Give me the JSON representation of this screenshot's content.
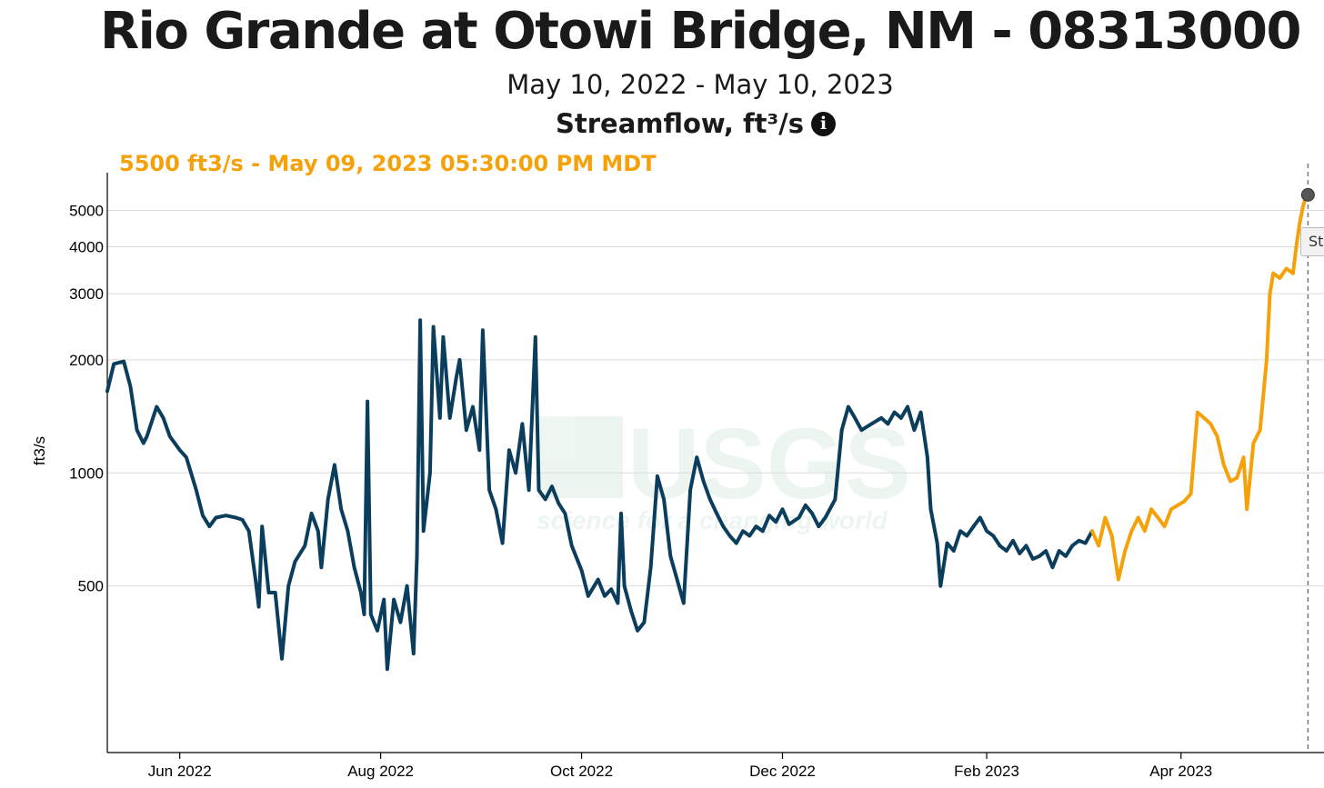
{
  "header": {
    "title": "Rio Grande at Otowi Bridge, NM - 08313000",
    "date_range": "May 10, 2022 - May 10, 2023",
    "parameter": "Streamflow, ft³/s",
    "info_icon": "info-circle-icon"
  },
  "hover": {
    "readout": "5500 ft3/s - May 09, 2023 05:30:00 PM MDT",
    "tooltip_text": "St"
  },
  "watermark": {
    "logo": "USGS",
    "tagline": "science for a changing world"
  },
  "colors": {
    "approved": "#0b3d5c",
    "provisional": "#f5a10a",
    "grid": "#dcdcdc",
    "hover_dot": "#555555"
  },
  "chart_data": {
    "type": "line",
    "title": "Rio Grande at Otowi Bridge, NM - 08313000",
    "subtitle": "May 10, 2022 - May 10, 2023",
    "xlabel": "",
    "ylabel": "ft3/s",
    "y_scale": "log",
    "x_range": [
      "2022-05-10",
      "2023-05-10"
    ],
    "ylim": [
      180,
      6300
    ],
    "y_ticks": [
      500,
      1000,
      2000,
      3000,
      4000,
      5000
    ],
    "x_ticks": [
      {
        "date": "2022-06-01",
        "label": "Jun 2022"
      },
      {
        "date": "2022-08-01",
        "label": "Aug 2022"
      },
      {
        "date": "2022-10-01",
        "label": "Oct 2022"
      },
      {
        "date": "2022-12-01",
        "label": "Dec 2022"
      },
      {
        "date": "2023-02-01",
        "label": "Feb 2023"
      },
      {
        "date": "2023-04-01",
        "label": "Apr 2023"
      }
    ],
    "grid": true,
    "legend": "none",
    "series": [
      {
        "status": "approved",
        "color": "#0b3d5c",
        "points": [
          [
            "2022-05-10",
            1650
          ],
          [
            "2022-05-12",
            1950
          ],
          [
            "2022-05-15",
            1980
          ],
          [
            "2022-05-17",
            1700
          ],
          [
            "2022-05-19",
            1300
          ],
          [
            "2022-05-21",
            1200
          ],
          [
            "2022-05-22",
            1250
          ],
          [
            "2022-05-25",
            1500
          ],
          [
            "2022-05-27",
            1400
          ],
          [
            "2022-05-29",
            1250
          ],
          [
            "2022-06-01",
            1150
          ],
          [
            "2022-06-03",
            1100
          ],
          [
            "2022-06-06",
            900
          ],
          [
            "2022-06-08",
            770
          ],
          [
            "2022-06-10",
            720
          ],
          [
            "2022-06-12",
            760
          ],
          [
            "2022-06-15",
            770
          ],
          [
            "2022-06-18",
            760
          ],
          [
            "2022-06-20",
            750
          ],
          [
            "2022-06-22",
            700
          ],
          [
            "2022-06-24",
            520
          ],
          [
            "2022-06-25",
            440
          ],
          [
            "2022-06-26",
            720
          ],
          [
            "2022-06-28",
            480
          ],
          [
            "2022-06-30",
            480
          ],
          [
            "2022-07-02",
            320
          ],
          [
            "2022-07-04",
            500
          ],
          [
            "2022-07-06",
            580
          ],
          [
            "2022-07-09",
            640
          ],
          [
            "2022-07-11",
            780
          ],
          [
            "2022-07-13",
            700
          ],
          [
            "2022-07-14",
            560
          ],
          [
            "2022-07-16",
            850
          ],
          [
            "2022-07-18",
            1050
          ],
          [
            "2022-07-20",
            800
          ],
          [
            "2022-07-22",
            700
          ],
          [
            "2022-07-24",
            560
          ],
          [
            "2022-07-26",
            480
          ],
          [
            "2022-07-27",
            420
          ],
          [
            "2022-07-28",
            1550
          ],
          [
            "2022-07-29",
            420
          ],
          [
            "2022-07-31",
            380
          ],
          [
            "2022-08-02",
            460
          ],
          [
            "2022-08-03",
            300
          ],
          [
            "2022-08-05",
            460
          ],
          [
            "2022-08-07",
            400
          ],
          [
            "2022-08-09",
            500
          ],
          [
            "2022-08-11",
            330
          ],
          [
            "2022-08-12",
            600
          ],
          [
            "2022-08-13",
            2550
          ],
          [
            "2022-08-14",
            700
          ],
          [
            "2022-08-16",
            1000
          ],
          [
            "2022-08-17",
            2450
          ],
          [
            "2022-08-19",
            1400
          ],
          [
            "2022-08-20",
            2300
          ],
          [
            "2022-08-22",
            1400
          ],
          [
            "2022-08-24",
            1800
          ],
          [
            "2022-08-25",
            2000
          ],
          [
            "2022-08-27",
            1300
          ],
          [
            "2022-08-29",
            1500
          ],
          [
            "2022-08-31",
            1150
          ],
          [
            "2022-09-01",
            2400
          ],
          [
            "2022-09-03",
            900
          ],
          [
            "2022-09-05",
            800
          ],
          [
            "2022-09-07",
            650
          ],
          [
            "2022-09-09",
            1150
          ],
          [
            "2022-09-11",
            1000
          ],
          [
            "2022-09-13",
            1350
          ],
          [
            "2022-09-15",
            900
          ],
          [
            "2022-09-17",
            2300
          ],
          [
            "2022-09-18",
            900
          ],
          [
            "2022-09-20",
            850
          ],
          [
            "2022-09-22",
            920
          ],
          [
            "2022-09-24",
            830
          ],
          [
            "2022-09-26",
            780
          ],
          [
            "2022-09-28",
            640
          ],
          [
            "2022-10-01",
            550
          ],
          [
            "2022-10-03",
            470
          ],
          [
            "2022-10-06",
            520
          ],
          [
            "2022-10-08",
            470
          ],
          [
            "2022-10-10",
            490
          ],
          [
            "2022-10-12",
            450
          ],
          [
            "2022-10-13",
            780
          ],
          [
            "2022-10-14",
            500
          ],
          [
            "2022-10-16",
            430
          ],
          [
            "2022-10-18",
            380
          ],
          [
            "2022-10-20",
            400
          ],
          [
            "2022-10-22",
            560
          ],
          [
            "2022-10-24",
            980
          ],
          [
            "2022-10-26",
            850
          ],
          [
            "2022-10-28",
            600
          ],
          [
            "2022-10-30",
            520
          ],
          [
            "2022-11-01",
            450
          ],
          [
            "2022-11-03",
            900
          ],
          [
            "2022-11-05",
            1100
          ],
          [
            "2022-11-07",
            950
          ],
          [
            "2022-11-09",
            850
          ],
          [
            "2022-11-11",
            780
          ],
          [
            "2022-11-13",
            720
          ],
          [
            "2022-11-15",
            680
          ],
          [
            "2022-11-17",
            650
          ],
          [
            "2022-11-19",
            700
          ],
          [
            "2022-11-21",
            680
          ],
          [
            "2022-11-23",
            720
          ],
          [
            "2022-11-25",
            700
          ],
          [
            "2022-11-27",
            770
          ],
          [
            "2022-11-29",
            740
          ],
          [
            "2022-12-01",
            800
          ],
          [
            "2022-12-03",
            730
          ],
          [
            "2022-12-06",
            760
          ],
          [
            "2022-12-08",
            820
          ],
          [
            "2022-12-10",
            780
          ],
          [
            "2022-12-12",
            720
          ],
          [
            "2022-12-14",
            760
          ],
          [
            "2022-12-17",
            850
          ],
          [
            "2022-12-19",
            1300
          ],
          [
            "2022-12-21",
            1500
          ],
          [
            "2022-12-23",
            1400
          ],
          [
            "2022-12-25",
            1300
          ],
          [
            "2022-12-28",
            1350
          ],
          [
            "2022-12-31",
            1400
          ],
          [
            "2023-01-02",
            1350
          ],
          [
            "2023-01-04",
            1450
          ],
          [
            "2023-01-06",
            1400
          ],
          [
            "2023-01-08",
            1500
          ],
          [
            "2023-01-10",
            1300
          ],
          [
            "2023-01-12",
            1450
          ],
          [
            "2023-01-14",
            1100
          ],
          [
            "2023-01-15",
            800
          ],
          [
            "2023-01-17",
            650
          ],
          [
            "2023-01-18",
            500
          ],
          [
            "2023-01-20",
            650
          ],
          [
            "2023-01-22",
            620
          ],
          [
            "2023-01-24",
            700
          ],
          [
            "2023-01-26",
            680
          ],
          [
            "2023-01-28",
            720
          ],
          [
            "2023-01-30",
            760
          ],
          [
            "2023-02-01",
            700
          ],
          [
            "2023-02-03",
            680
          ],
          [
            "2023-02-05",
            640
          ],
          [
            "2023-02-07",
            620
          ],
          [
            "2023-02-09",
            660
          ],
          [
            "2023-02-11",
            610
          ],
          [
            "2023-02-13",
            640
          ],
          [
            "2023-02-15",
            590
          ],
          [
            "2023-02-17",
            600
          ],
          [
            "2023-02-19",
            620
          ],
          [
            "2023-02-21",
            560
          ],
          [
            "2023-02-23",
            620
          ],
          [
            "2023-02-25",
            600
          ],
          [
            "2023-02-27",
            640
          ],
          [
            "2023-03-01",
            660
          ],
          [
            "2023-03-03",
            650
          ],
          [
            "2023-03-05",
            700
          ]
        ]
      },
      {
        "status": "provisional",
        "color": "#f5a10a",
        "points": [
          [
            "2023-03-05",
            700
          ],
          [
            "2023-03-07",
            640
          ],
          [
            "2023-03-09",
            760
          ],
          [
            "2023-03-11",
            680
          ],
          [
            "2023-03-13",
            520
          ],
          [
            "2023-03-15",
            620
          ],
          [
            "2023-03-17",
            700
          ],
          [
            "2023-03-19",
            760
          ],
          [
            "2023-03-21",
            700
          ],
          [
            "2023-03-23",
            800
          ],
          [
            "2023-03-25",
            760
          ],
          [
            "2023-03-27",
            720
          ],
          [
            "2023-03-29",
            800
          ],
          [
            "2023-03-31",
            820
          ],
          [
            "2023-04-02",
            840
          ],
          [
            "2023-04-04",
            880
          ],
          [
            "2023-04-06",
            1450
          ],
          [
            "2023-04-08",
            1400
          ],
          [
            "2023-04-10",
            1350
          ],
          [
            "2023-04-12",
            1250
          ],
          [
            "2023-04-14",
            1050
          ],
          [
            "2023-04-16",
            950
          ],
          [
            "2023-04-18",
            970
          ],
          [
            "2023-04-20",
            1100
          ],
          [
            "2023-04-21",
            800
          ],
          [
            "2023-04-23",
            1200
          ],
          [
            "2023-04-25",
            1300
          ],
          [
            "2023-04-27",
            2000
          ],
          [
            "2023-04-28",
            3000
          ],
          [
            "2023-04-29",
            3400
          ],
          [
            "2023-05-01",
            3300
          ],
          [
            "2023-05-03",
            3500
          ],
          [
            "2023-05-05",
            3400
          ],
          [
            "2023-05-06",
            4000
          ],
          [
            "2023-05-07",
            4600
          ],
          [
            "2023-05-08",
            5100
          ],
          [
            "2023-05-09",
            5500
          ]
        ]
      }
    ],
    "hover_point": {
      "date": "2023-05-09",
      "value": 5500
    }
  }
}
